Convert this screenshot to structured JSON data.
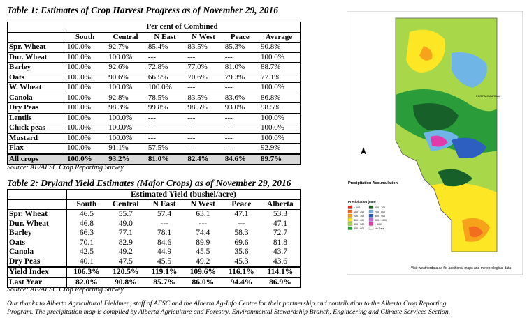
{
  "table1": {
    "title": "Table 1: Estimates of Crop Harvest Progress as of November 29, 2016",
    "group_header": "Per cent of Combined",
    "columns": [
      "South",
      "Central",
      "N East",
      "N West",
      "Peace",
      "Average"
    ],
    "rows": [
      {
        "crop": "Spr. Wheat",
        "values": [
          "100.0%",
          "92.7%",
          "85.4%",
          "83.5%",
          "85.3%",
          "90.8%"
        ]
      },
      {
        "crop": "Dur. Wheat",
        "values": [
          "100.0%",
          "100.0%",
          "---",
          "---",
          "---",
          "100.0%"
        ]
      },
      {
        "crop": "Barley",
        "values": [
          "100.0%",
          "92.6%",
          "72.8%",
          "77.0%",
          "81.0%",
          "88.7%"
        ]
      },
      {
        "crop": "Oats",
        "values": [
          "100.0%",
          "90.6%",
          "66.5%",
          "70.6%",
          "79.3%",
          "77.1%"
        ]
      },
      {
        "crop": "W. Wheat",
        "values": [
          "100.0%",
          "100.0%",
          "100.0%",
          "---",
          "---",
          "100.0%"
        ]
      },
      {
        "crop": "Canola",
        "values": [
          "100.0%",
          "92.8%",
          "78.5%",
          "83.5%",
          "83.6%",
          "86.8%"
        ]
      },
      {
        "crop": "Dry Peas",
        "values": [
          "100.0%",
          "98.3%",
          "99.8%",
          "98.5%",
          "93.0%",
          "98.5%"
        ]
      },
      {
        "crop": "Lentils",
        "values": [
          "100.0%",
          "100.0%",
          "---",
          "---",
          "---",
          "100.0%"
        ]
      },
      {
        "crop": "Chick peas",
        "values": [
          "100.0%",
          "100.0%",
          "---",
          "---",
          "---",
          "100.0%"
        ]
      },
      {
        "crop": "Mustard",
        "values": [
          "100.0%",
          "100.0%",
          "---",
          "---",
          "---",
          "100.0%"
        ]
      },
      {
        "crop": "Flax",
        "values": [
          "100.0%",
          "91.1%",
          "57.5%",
          "---",
          "---",
          "92.9%"
        ]
      }
    ],
    "total": {
      "crop": "All crops",
      "values": [
        "100.0%",
        "93.2%",
        "81.0%",
        "82.4%",
        "84.6%",
        "89.7%"
      ]
    },
    "source": "Source: AF/AFSC Crop Reporting Survey"
  },
  "table2": {
    "title": "Table 2: Dryland Yield Estimates (Major Crops) as of November 29, 2016",
    "group_header": "Estimated Yield (bushel/acre)",
    "columns": [
      "South",
      "Central",
      "N East",
      "N West",
      "Peace",
      "Alberta"
    ],
    "rows": [
      {
        "crop": "Spr. Wheat",
        "values": [
          "46.5",
          "55.7",
          "57.4",
          "63.1",
          "47.1",
          "53.3"
        ]
      },
      {
        "crop": "Dur. Wheat",
        "values": [
          "46.8",
          "49.0",
          "---",
          "---",
          "---",
          "47.1"
        ]
      },
      {
        "crop": "Barley",
        "values": [
          "66.3",
          "77.1",
          "78.1",
          "74.4",
          "58.3",
          "72.7"
        ]
      },
      {
        "crop": "Oats",
        "values": [
          "70.1",
          "82.9",
          "84.6",
          "89.9",
          "69.6",
          "81.8"
        ]
      },
      {
        "crop": "Canola",
        "values": [
          "42.5",
          "49.2",
          "44.9",
          "45.5",
          "35.6",
          "43.7"
        ]
      },
      {
        "crop": "Dry Peas",
        "values": [
          "40.1",
          "47.5",
          "45.5",
          "49.2",
          "45.3",
          "43.6"
        ]
      }
    ],
    "yield_index": {
      "crop": "Yield Index",
      "values": [
        "106.3%",
        "120.5%",
        "119.1%",
        "109.6%",
        "116.1%",
        "114.1%"
      ]
    },
    "last_year": {
      "crop": "Last Year",
      "values": [
        "82.0%",
        "90.8%",
        "85.7%",
        "86.0%",
        "94.4%",
        "86.9%"
      ]
    },
    "source": "Source: AF/AFSC Crop Reporting Survey"
  },
  "thanks": "Our thanks to Alberta Agricultural Fieldmen, staff of AFSC and the Alberta Ag-Info Centre for their partnership and contribution to the Alberta Crop Reporting Program. The precipitation map is compiled by Alberta Agriculture and Forestry, Environmental Stewardship Branch, Engineering and Climate Services Section.",
  "map": {
    "legend_title": "Precipitation Accumulation",
    "legend_heading": "Precipitation (mm)",
    "legend_items": [
      {
        "label": "< 100",
        "color": "#e8261c"
      },
      {
        "label": "100 - 200",
        "color": "#f26d1d"
      },
      {
        "label": "200 - 300",
        "color": "#f7a21b"
      },
      {
        "label": "300 - 400",
        "color": "#fde725"
      },
      {
        "label": "400 - 500",
        "color": "#a8d84a"
      },
      {
        "label": "500 - 600",
        "color": "#2a9c3a"
      },
      {
        "label": "600 - 700",
        "color": "#17602a"
      },
      {
        "label": "700 - 800",
        "color": "#6fb6e6"
      },
      {
        "label": "800 - 900",
        "color": "#2c5fbf"
      },
      {
        "label": "900 - 1000",
        "color": "#c36bd4"
      },
      {
        "label": "> 1000",
        "color": "#e23ba9"
      },
      {
        "label": "No Data",
        "color": "#ffffff"
      }
    ],
    "footer": "Visit weatherdata.ca for additional maps and meteorological data",
    "city_label": "FORT MCMURRAY"
  }
}
